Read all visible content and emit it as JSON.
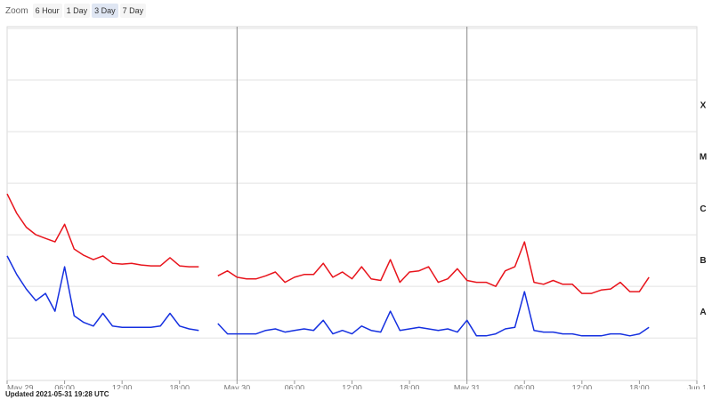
{
  "zoom": {
    "label": "Zoom",
    "options": [
      "6 Hour",
      "1 Day",
      "3 Day",
      "7 Day"
    ],
    "active": 2
  },
  "chart_data": {
    "type": "line",
    "log_scale": true,
    "grid": true,
    "x": [
      0,
      1,
      2,
      3,
      4,
      5,
      6,
      7,
      8,
      9,
      10,
      11,
      12,
      13,
      14,
      15,
      16,
      17,
      18,
      19,
      20,
      21,
      22,
      23,
      24,
      25,
      26,
      27,
      28,
      29,
      30,
      31,
      32,
      33,
      34,
      35,
      36,
      37,
      38,
      39,
      40,
      41,
      42,
      43,
      44,
      45,
      46,
      47,
      48,
      49,
      50,
      51,
      52,
      53,
      54,
      55,
      56,
      57,
      58,
      59,
      60,
      61,
      62,
      63,
      64,
      65,
      66,
      67
    ],
    "xlim": [
      0,
      72
    ],
    "xticks": [
      {
        "value": 0,
        "label": "May 29"
      },
      {
        "value": 6,
        "label": "06:00"
      },
      {
        "value": 12,
        "label": "12:00"
      },
      {
        "value": 18,
        "label": "18:00"
      },
      {
        "value": 24,
        "label": "May 30"
      },
      {
        "value": 30,
        "label": "06:00"
      },
      {
        "value": 36,
        "label": "12:00"
      },
      {
        "value": 42,
        "label": "18:00"
      },
      {
        "value": 48,
        "label": "May 31"
      },
      {
        "value": 54,
        "label": "06:00"
      },
      {
        "value": 60,
        "label": "12:00"
      },
      {
        "value": 66,
        "label": "18:00"
      },
      {
        "value": 72,
        "label": "Jun 1"
      }
    ],
    "ylim": [
      1.5e-09,
      0.01
    ],
    "yticks": [
      1e-08,
      1e-07,
      1e-06,
      1e-05,
      0.0001,
      0.001,
      0.01
    ],
    "class_labels": [
      {
        "value": 1e-08,
        "label": "A"
      },
      {
        "value": 1e-07,
        "label": "B"
      },
      {
        "value": 1e-06,
        "label": "C"
      },
      {
        "value": 1e-05,
        "label": "M"
      },
      {
        "value": 0.0001,
        "label": "X"
      }
    ],
    "series": [
      {
        "color": "#e8141c",
        "values": [
          6.2e-06,
          2.6e-06,
          1.4e-06,
          1e-06,
          8.5e-07,
          7.3e-07,
          1.6e-06,
          5.3e-07,
          4e-07,
          3.3e-07,
          3.9e-07,
          2.8e-07,
          2.7e-07,
          2.8e-07,
          2.6e-07,
          2.5e-07,
          2.5e-07,
          3.6e-07,
          2.5e-07,
          2.4e-07,
          2.4e-07,
          null,
          1.6e-07,
          2e-07,
          1.5e-07,
          1.4e-07,
          1.4e-07,
          1.6e-07,
          1.9e-07,
          1.2e-07,
          1.5e-07,
          1.7e-07,
          1.7e-07,
          2.8e-07,
          1.5e-07,
          1.9e-07,
          1.4e-07,
          2.4e-07,
          1.4e-07,
          1.3e-07,
          3.3e-07,
          1.2e-07,
          1.9e-07,
          2e-07,
          2.4e-07,
          1.2e-07,
          1.4e-07,
          2.2e-07,
          1.3e-07,
          1.2e-07,
          1.2e-07,
          1e-07,
          2e-07,
          2.4e-07,
          7.3e-07,
          1.2e-07,
          1.1e-07,
          1.3e-07,
          1.1e-07,
          1.1e-07,
          7.3e-08,
          7.3e-08,
          8.5e-08,
          8.9e-08,
          1.2e-07,
          7.9e-08,
          7.9e-08,
          1.5e-07
        ]
      },
      {
        "color": "#1530e0",
        "values": [
          3.9e-07,
          1.7e-07,
          8.9e-08,
          5.3e-08,
          7.3e-08,
          3.3e-08,
          2.4e-07,
          2.7e-08,
          2e-08,
          1.7e-08,
          3e-08,
          1.7e-08,
          1.6e-08,
          1.6e-08,
          1.6e-08,
          1.6e-08,
          1.7e-08,
          3e-08,
          1.7e-08,
          1.5e-08,
          1.4e-08,
          null,
          1.9e-08,
          1.2e-08,
          1.2e-08,
          1.2e-08,
          1.2e-08,
          1.4e-08,
          1.5e-08,
          1.3e-08,
          1.4e-08,
          1.5e-08,
          1.4e-08,
          2.2e-08,
          1.2e-08,
          1.4e-08,
          1.2e-08,
          1.7e-08,
          1.4e-08,
          1.3e-08,
          3.3e-08,
          1.4e-08,
          1.5e-08,
          1.6e-08,
          1.5e-08,
          1.4e-08,
          1.5e-08,
          1.3e-08,
          2.2e-08,
          1.1e-08,
          1.1e-08,
          1.2e-08,
          1.5e-08,
          1.6e-08,
          7.9e-08,
          1.4e-08,
          1.3e-08,
          1.3e-08,
          1.2e-08,
          1.2e-08,
          1.1e-08,
          1.1e-08,
          1.1e-08,
          1.2e-08,
          1.2e-08,
          1.1e-08,
          1.2e-08,
          1.6e-08
        ]
      }
    ]
  },
  "footer": "Updated 2021-05-31 19:28 UTC"
}
